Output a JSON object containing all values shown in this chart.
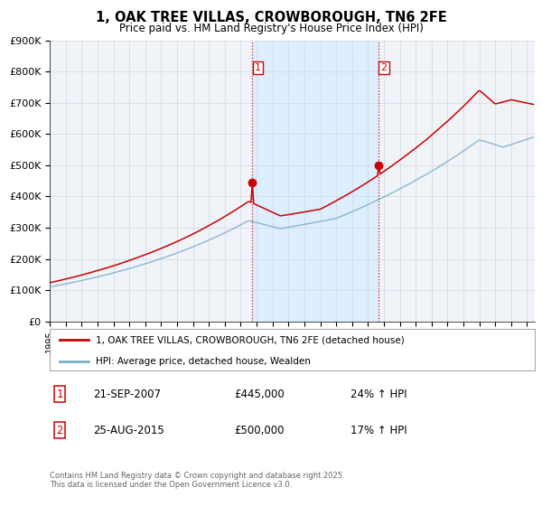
{
  "title": "1, OAK TREE VILLAS, CROWBOROUGH, TN6 2FE",
  "subtitle": "Price paid vs. HM Land Registry's House Price Index (HPI)",
  "legend_line1": "1, OAK TREE VILLAS, CROWBOROUGH, TN6 2FE (detached house)",
  "legend_line2": "HPI: Average price, detached house, Wealden",
  "transaction1_label": "1",
  "transaction1_date": "21-SEP-2007",
  "transaction1_price": "£445,000",
  "transaction1_hpi": "24% ↑ HPI",
  "transaction2_label": "2",
  "transaction2_date": "25-AUG-2015",
  "transaction2_price": "£500,000",
  "transaction2_hpi": "17% ↑ HPI",
  "sale1_year": 2007.72,
  "sale1_price": 445000,
  "sale2_year": 2015.65,
  "sale2_price": 500000,
  "vline1_year": 2007.72,
  "vline2_year": 2015.65,
  "shade_color": "#ddeeff",
  "red_color": "#cc0000",
  "blue_color": "#7aaccc",
  "background_color": "#ffffff",
  "grid_color": "#cccccc",
  "footer_text": "Contains HM Land Registry data © Crown copyright and database right 2025.\nThis data is licensed under the Open Government Licence v3.0.",
  "ylim_max": 900000,
  "ylim_min": 0,
  "xmin": 1995,
  "xmax": 2025.5
}
